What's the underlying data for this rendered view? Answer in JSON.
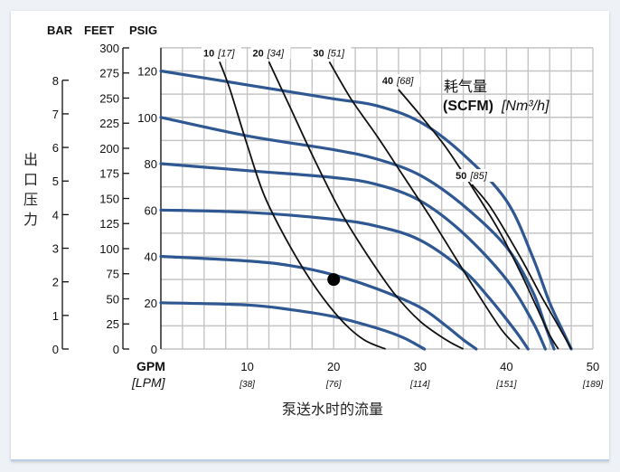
{
  "chart_data": {
    "type": "line",
    "left_axis_headers": {
      "bar": "BAR",
      "feet": "FEET",
      "psig": "PSIG"
    },
    "y_bar_ticks": [
      "0",
      "1",
      "2",
      "3",
      "4",
      "5",
      "6",
      "7",
      "8"
    ],
    "y_feet_ticks": [
      "0",
      "25",
      "50",
      "75",
      "100",
      "125",
      "150",
      "175",
      "200",
      "225",
      "250",
      "275",
      "300"
    ],
    "y_psig_ticks": [
      "0",
      "20",
      "40",
      "60",
      "80",
      "100",
      "120"
    ],
    "ylim_psig": [
      0,
      130
    ],
    "ylabel": "出口压力",
    "x_gpm_ticks": [
      "10",
      "20",
      "30",
      "40",
      "50"
    ],
    "x_lpm_ticks": [
      "[38]",
      "[76]",
      "[114]",
      "[151]",
      "[189]"
    ],
    "x_gpm_title": "GPM",
    "x_lpm_title": "[LPM]",
    "xlabel": "泵送水时的流量",
    "xlim_gpm": [
      0,
      50
    ],
    "grid": true,
    "legend": {
      "cn": "耗气量",
      "bold": "(SCFM)",
      "italic": "[Nm³/h]"
    },
    "series": [
      {
        "points": [
          [
            0,
            120
          ],
          [
            10,
            114
          ],
          [
            20,
            108
          ],
          [
            25,
            105
          ],
          [
            30,
            98
          ],
          [
            35,
            84
          ],
          [
            40,
            64
          ],
          [
            43,
            40
          ],
          [
            45,
            20
          ],
          [
            46.5,
            8
          ],
          [
            47.5,
            0
          ]
        ]
      },
      {
        "points": [
          [
            0,
            100
          ],
          [
            10,
            92
          ],
          [
            20,
            86
          ],
          [
            25,
            82
          ],
          [
            30,
            75
          ],
          [
            35,
            62
          ],
          [
            40,
            44
          ],
          [
            43,
            25
          ],
          [
            44.5,
            10
          ],
          [
            45.5,
            0
          ]
        ]
      },
      {
        "points": [
          [
            0,
            80
          ],
          [
            10,
            77
          ],
          [
            20,
            74
          ],
          [
            25,
            71
          ],
          [
            30,
            64
          ],
          [
            35,
            50
          ],
          [
            40,
            30
          ],
          [
            43,
            12
          ],
          [
            44.5,
            0
          ]
        ]
      },
      {
        "points": [
          [
            0,
            60
          ],
          [
            10,
            59
          ],
          [
            20,
            56
          ],
          [
            25,
            53
          ],
          [
            30,
            47
          ],
          [
            35,
            34
          ],
          [
            38,
            22
          ],
          [
            41,
            8
          ],
          [
            42.5,
            0
          ]
        ]
      },
      {
        "points": [
          [
            0,
            40
          ],
          [
            10,
            38
          ],
          [
            15,
            36
          ],
          [
            20,
            32
          ],
          [
            25,
            26
          ],
          [
            30,
            18
          ],
          [
            33,
            10
          ],
          [
            35,
            4
          ],
          [
            36.5,
            0
          ]
        ]
      },
      {
        "points": [
          [
            0,
            20
          ],
          [
            10,
            19
          ],
          [
            15,
            17
          ],
          [
            20,
            14
          ],
          [
            25,
            9
          ],
          [
            28,
            5
          ],
          [
            30.5,
            0
          ]
        ]
      }
    ],
    "air_lines": [
      {
        "label": "10",
        "nm": "[17]",
        "points": [
          [
            6.8,
            124
          ],
          [
            8,
            112
          ],
          [
            10,
            88
          ],
          [
            12,
            66
          ],
          [
            15,
            44
          ],
          [
            18,
            26
          ],
          [
            21,
            12
          ],
          [
            23.5,
            4
          ],
          [
            26,
            0
          ]
        ]
      },
      {
        "label": "20",
        "nm": "[34]",
        "points": [
          [
            12.5,
            124
          ],
          [
            15,
            104
          ],
          [
            18,
            80
          ],
          [
            21,
            58
          ],
          [
            24,
            40
          ],
          [
            27,
            24
          ],
          [
            30,
            12
          ],
          [
            33,
            4
          ],
          [
            35,
            0
          ]
        ]
      },
      {
        "label": "30",
        "nm": "[51]",
        "points": [
          [
            19.5,
            124
          ],
          [
            22,
            108
          ],
          [
            25,
            92
          ],
          [
            28,
            75
          ],
          [
            31,
            58
          ],
          [
            34,
            40
          ],
          [
            37,
            22
          ],
          [
            39.5,
            8
          ],
          [
            41.5,
            0
          ]
        ]
      },
      {
        "label": "40",
        "nm": "[68]",
        "points": [
          [
            27.5,
            112
          ],
          [
            30,
            101
          ],
          [
            33,
            87
          ],
          [
            36,
            70
          ],
          [
            39,
            52
          ],
          [
            41.5,
            34
          ],
          [
            43.5,
            18
          ],
          [
            45,
            6
          ],
          [
            46,
            0
          ]
        ]
      },
      {
        "label": "50",
        "nm": "[85]",
        "points": [
          [
            36,
            71
          ],
          [
            38,
            62
          ],
          [
            40,
            50
          ],
          [
            42,
            37
          ],
          [
            44,
            23
          ],
          [
            46,
            10
          ],
          [
            47.5,
            0
          ]
        ]
      }
    ],
    "operating_point": {
      "gpm": 20,
      "psig": 30
    }
  }
}
